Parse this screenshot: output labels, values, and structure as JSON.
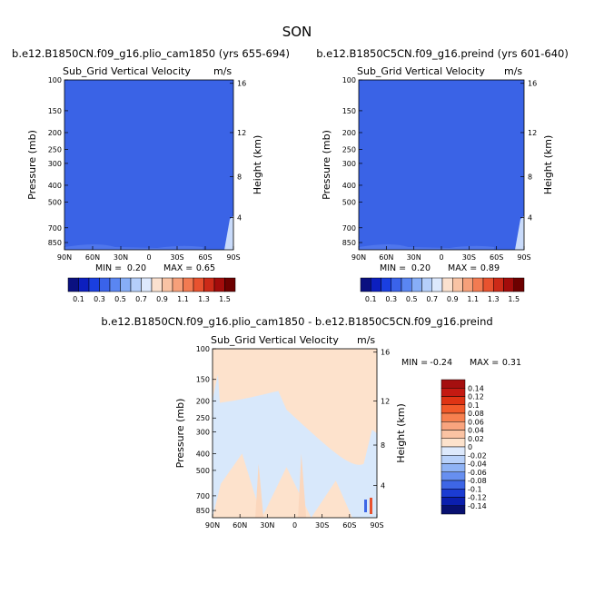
{
  "page": {
    "title": "SON"
  },
  "colors": {
    "blue_fill": "#3a63e6",
    "blue_border": "#2a4fd6",
    "cream_fill": "#fde2cc",
    "light_blue_fill": "#d8e8fb",
    "light_blue_panel": "#dfe9fa"
  },
  "chart_data": [
    {
      "type": "heatmap",
      "experiment": "b.e12.B1850CN.f09_g16.plio_cam1850 (yrs 655-694)",
      "field": "Sub_Grid Vertical Velocity",
      "units": "m/s",
      "xlabel": "",
      "ylabel": "Pressure (mb)",
      "ylabel_right": "Height (km)",
      "x_ticks": [
        "90N",
        "60N",
        "30N",
        "0",
        "30S",
        "60S",
        "90S"
      ],
      "y_ticks": [
        "100",
        "150",
        "200",
        "250",
        "300",
        "400",
        "500",
        "700",
        "850"
      ],
      "y_ticks_right": [
        "16",
        "12",
        "8",
        "4"
      ],
      "stats": {
        "min_label": "MIN =",
        "min": "0.20",
        "max_label": "MAX =",
        "max": "0.65"
      },
      "colorbar": {
        "labels": [
          "0.1",
          "0.3",
          "0.5",
          "0.7",
          "0.9",
          "1.1",
          "1.3",
          "1.5"
        ],
        "colors": [
          "#0a1080",
          "#0c1fbf",
          "#1a3fe0",
          "#3a63ea",
          "#5a86f2",
          "#87aef7",
          "#b5cffb",
          "#dde9fd",
          "#fbe1cf",
          "#f9c3a4",
          "#f6a07a",
          "#f27b52",
          "#e8522f",
          "#cc2a18",
          "#a30c0b",
          "#6d0000"
        ]
      }
    },
    {
      "type": "heatmap",
      "experiment": "b.e12.B1850C5CN.f09_g16.preind (yrs 601-640)",
      "field": "Sub_Grid Vertical Velocity",
      "units": "m/s",
      "xlabel": "",
      "ylabel": "Pressure (mb)",
      "ylabel_right": "Height (km)",
      "x_ticks": [
        "90N",
        "60N",
        "30N",
        "0",
        "30S",
        "60S",
        "90S"
      ],
      "y_ticks": [
        "100",
        "150",
        "200",
        "250",
        "300",
        "400",
        "500",
        "700",
        "850"
      ],
      "y_ticks_right": [
        "16",
        "12",
        "8",
        "4"
      ],
      "stats": {
        "min_label": "MIN =",
        "min": "0.20",
        "max_label": "MAX =",
        "max": "0.89"
      },
      "colorbar": {
        "labels": [
          "0.1",
          "0.3",
          "0.5",
          "0.7",
          "0.9",
          "1.1",
          "1.3",
          "1.5"
        ],
        "colors": [
          "#0a1080",
          "#0c1fbf",
          "#1a3fe0",
          "#3a63ea",
          "#5a86f2",
          "#87aef7",
          "#b5cffb",
          "#dde9fd",
          "#fbe1cf",
          "#f9c3a4",
          "#f6a07a",
          "#f27b52",
          "#e8522f",
          "#cc2a18",
          "#a30c0b",
          "#6d0000"
        ]
      }
    },
    {
      "type": "heatmap",
      "experiment": "b.e12.B1850CN.f09_g16.plio_cam1850 - b.e12.B1850C5CN.f09_g16.preind",
      "field": "Sub_Grid Vertical Velocity",
      "units": "m/s",
      "xlabel": "",
      "ylabel": "Pressure (mb)",
      "ylabel_right": "Height (km)",
      "x_ticks": [
        "90N",
        "60N",
        "30N",
        "0",
        "30S",
        "60S",
        "90S"
      ],
      "y_ticks": [
        "100",
        "150",
        "200",
        "250",
        "300",
        "400",
        "500",
        "700",
        "850"
      ],
      "y_ticks_right": [
        "16",
        "12",
        "8",
        "4"
      ],
      "stats": {
        "min_label": "MIN =",
        "min": "-0.24",
        "max_label": "MAX =",
        "max": "0.31"
      },
      "colorbar": {
        "labels": [
          "0.14",
          "0.12",
          "0.1",
          "0.08",
          "0.06",
          "0.04",
          "0.02",
          "0",
          "-0.02",
          "-0.04",
          "-0.06",
          "-0.08",
          "-0.1",
          "-0.12",
          "-0.14"
        ],
        "colors": [
          "#a50f0f",
          "#c41a12",
          "#df3414",
          "#f25a2a",
          "#f7804f",
          "#f9a47e",
          "#fbc3a3",
          "#fde2cc",
          "#dde9fc",
          "#b8d1fa",
          "#8fb3f5",
          "#678ff0",
          "#3e66e6",
          "#1b3cd2",
          "#0b1fae",
          "#081070"
        ]
      }
    }
  ]
}
